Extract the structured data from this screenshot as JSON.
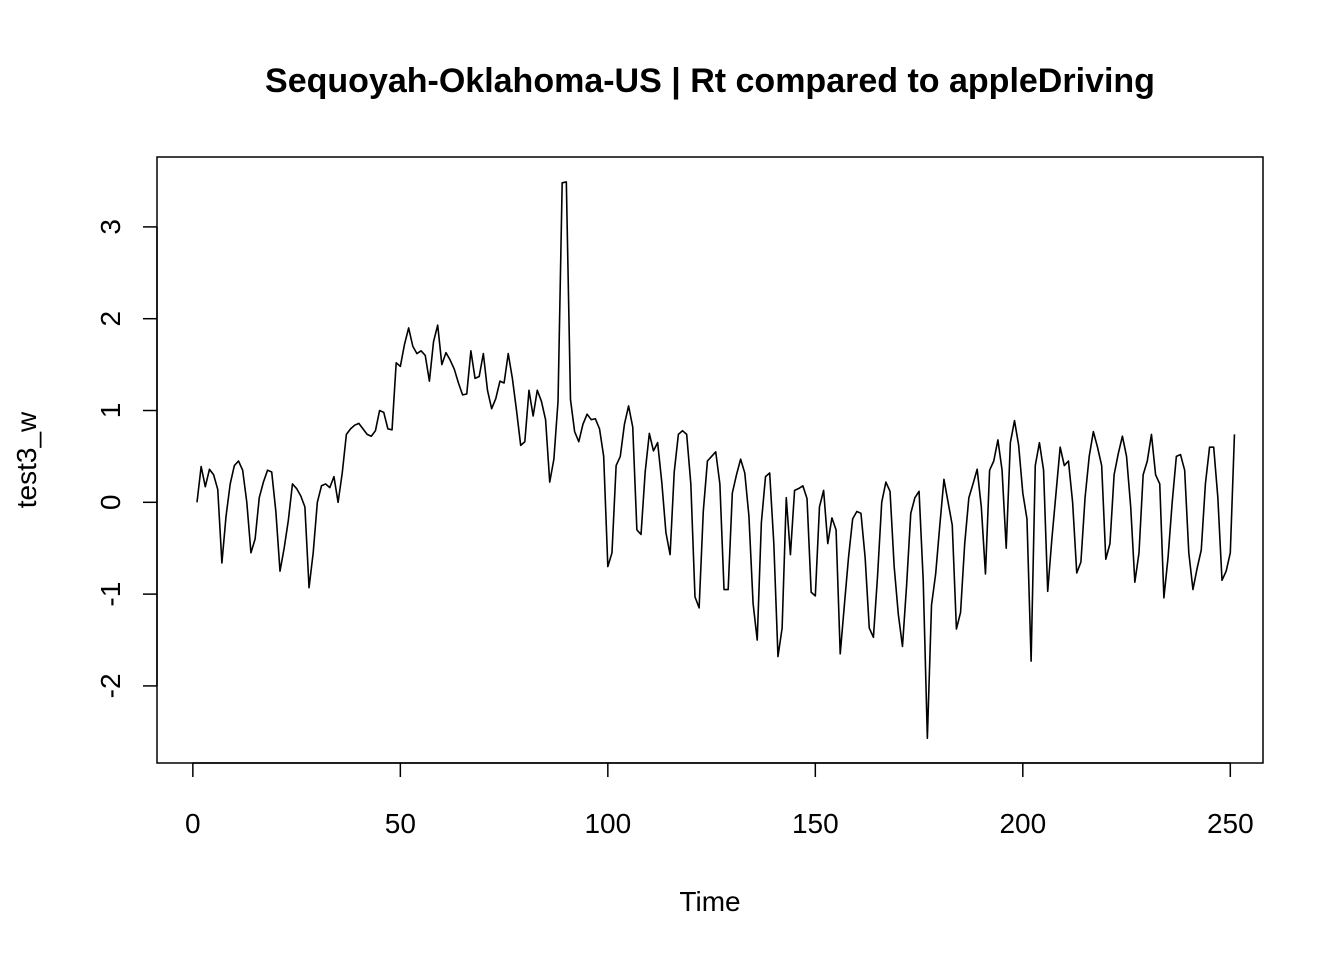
{
  "chart_data": {
    "type": "line",
    "title": "Sequoyah-Oklahoma-US | Rt compared to appleDriving",
    "xlabel": "Time",
    "ylabel": "test3_w",
    "xlim": [
      1,
      248
    ],
    "ylim": [
      -2.6,
      3.5
    ],
    "xticks": [
      0,
      50,
      100,
      150,
      200,
      250
    ],
    "yticks": [
      -2,
      -1,
      0,
      1,
      2,
      3
    ],
    "x_start": 1,
    "series": [
      {
        "values": [
          0.0,
          0.39,
          0.17,
          0.36,
          0.3,
          0.14,
          -0.66,
          -0.15,
          0.2,
          0.4,
          0.45,
          0.35,
          0.0,
          -0.55,
          -0.4,
          0.05,
          0.22,
          0.35,
          0.33,
          -0.1,
          -0.75,
          -0.5,
          -0.2,
          0.2,
          0.15,
          0.07,
          -0.05,
          -0.93,
          -0.55,
          0.0,
          0.18,
          0.2,
          0.16,
          0.28,
          0.0,
          0.32,
          0.74,
          0.8,
          0.84,
          0.86,
          0.8,
          0.74,
          0.72,
          0.78,
          1.0,
          0.98,
          0.8,
          0.79,
          1.52,
          1.48,
          1.72,
          1.9,
          1.7,
          1.62,
          1.65,
          1.6,
          1.32,
          1.75,
          1.93,
          1.5,
          1.63,
          1.55,
          1.45,
          1.3,
          1.17,
          1.18,
          1.65,
          1.35,
          1.37,
          1.62,
          1.22,
          1.02,
          1.13,
          1.32,
          1.3,
          1.62,
          1.35,
          1.0,
          0.62,
          0.66,
          1.22,
          0.94,
          1.22,
          1.1,
          0.9,
          0.22,
          0.47,
          1.1,
          3.48,
          3.49,
          1.12,
          0.77,
          0.66,
          0.85,
          0.96,
          0.9,
          0.91,
          0.8,
          0.5,
          -0.7,
          -0.55,
          0.4,
          0.5,
          0.85,
          1.05,
          0.82,
          -0.3,
          -0.35,
          0.33,
          0.75,
          0.56,
          0.65,
          0.22,
          -0.33,
          -0.57,
          0.33,
          0.74,
          0.78,
          0.74,
          0.2,
          -1.03,
          -1.15,
          -0.1,
          0.45,
          0.5,
          0.55,
          0.2,
          -0.95,
          -0.95,
          0.1,
          0.3,
          0.47,
          0.32,
          -0.15,
          -1.1,
          -1.5,
          -0.22,
          0.28,
          0.32,
          -0.45,
          -1.68,
          -1.37,
          0.05,
          -0.57,
          0.13,
          0.15,
          0.18,
          0.04,
          -0.98,
          -1.02,
          -0.05,
          0.13,
          -0.45,
          -0.17,
          -0.3,
          -1.65,
          -1.12,
          -0.6,
          -0.18,
          -0.1,
          -0.12,
          -0.6,
          -1.37,
          -1.47,
          -0.8,
          0.0,
          0.22,
          0.12,
          -0.7,
          -1.22,
          -1.57,
          -0.9,
          -0.12,
          0.05,
          0.12,
          -0.85,
          -2.57,
          -1.12,
          -0.78,
          -0.25,
          0.25,
          0.0,
          -0.25,
          -1.38,
          -1.2,
          -0.45,
          0.05,
          0.2,
          0.36,
          -0.05,
          -0.78,
          0.35,
          0.45,
          0.68,
          0.35,
          -0.5,
          0.65,
          0.89,
          0.62,
          0.1,
          -0.18,
          -1.73,
          0.4,
          0.65,
          0.35,
          -0.97,
          -0.4,
          0.1,
          0.6,
          0.4,
          0.45,
          0.0,
          -0.77,
          -0.65,
          0.05,
          0.5,
          0.77,
          0.6,
          0.4,
          -0.62,
          -0.45,
          0.3,
          0.53,
          0.72,
          0.5,
          -0.05,
          -0.87,
          -0.55,
          0.3,
          0.45,
          0.74,
          0.3,
          0.2,
          -1.04,
          -0.6,
          0.0,
          0.5,
          0.52,
          0.35,
          -0.55,
          -0.95,
          -0.72,
          -0.52,
          0.2,
          0.6,
          0.6,
          0.05,
          -0.85,
          -0.75,
          -0.55,
          0.74
        ]
      }
    ]
  }
}
